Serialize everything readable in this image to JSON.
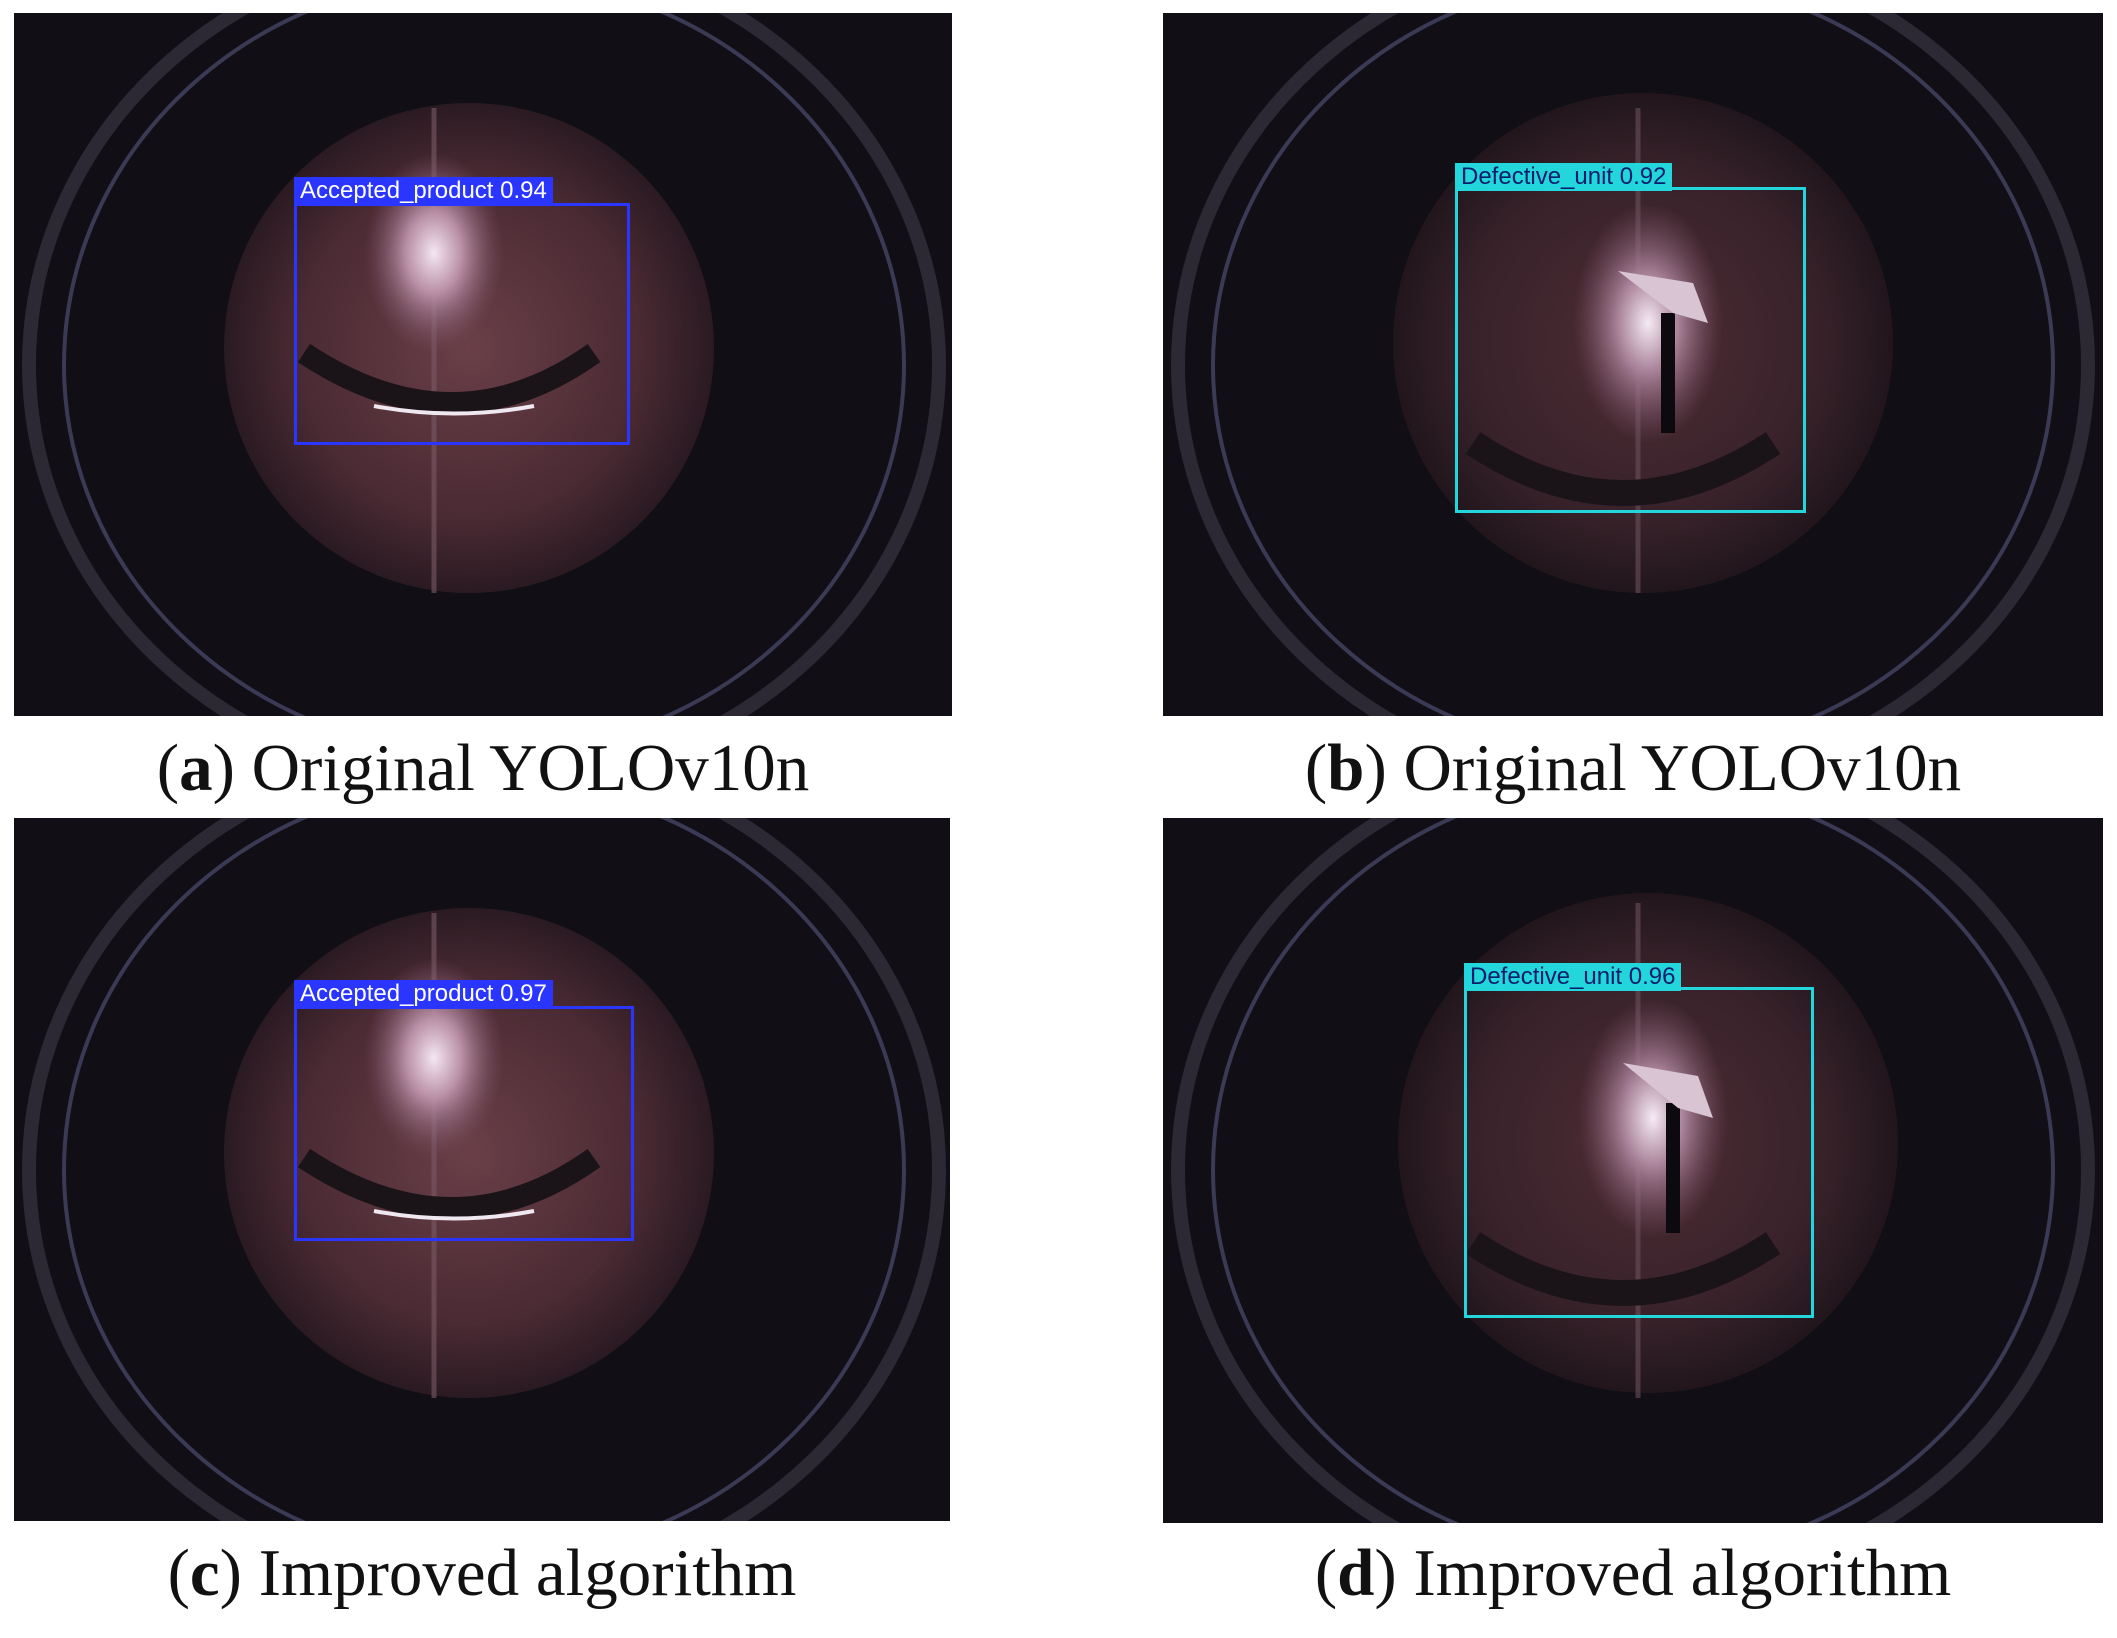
{
  "panels": [
    {
      "id": "a",
      "caption_letter": "a",
      "caption_text": "Original YOLOv10n",
      "detection": {
        "class_label": "Accepted_product",
        "confidence": "0.94"
      }
    },
    {
      "id": "b",
      "caption_letter": "b",
      "caption_text": "Original YOLOv10n",
      "detection": {
        "class_label": "Defective_unit",
        "confidence": "0.92"
      }
    },
    {
      "id": "c",
      "caption_letter": "c",
      "caption_text": "Improved algorithm",
      "detection": {
        "class_label": "Accepted_product",
        "confidence": "0.97"
      }
    },
    {
      "id": "d",
      "caption_letter": "d",
      "caption_text": "Improved algorithm",
      "detection": {
        "class_label": "Defective_unit",
        "confidence": "0.96"
      }
    }
  ],
  "colors": {
    "accepted_box": "#2a35ff",
    "defective_box": "#22d6dc",
    "background": "#100d14"
  }
}
